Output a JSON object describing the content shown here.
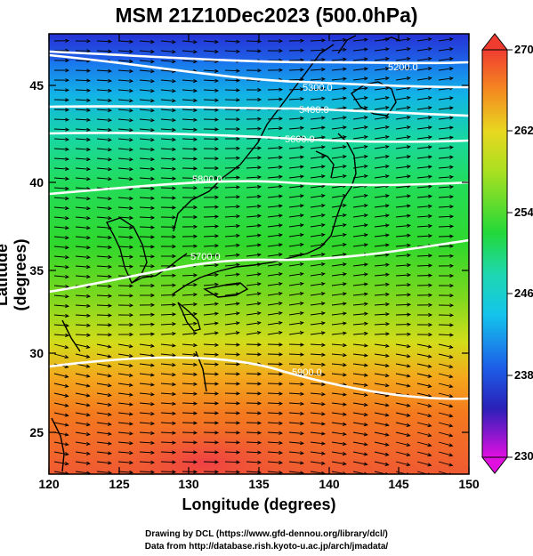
{
  "title": "MSM 21Z10Dec2023 (500.0hPa)",
  "axes": {
    "xlabel": "Longitude (degrees)",
    "ylabel": "Latitude  (degrees)",
    "x_ticks": [
      "120",
      "125",
      "130",
      "135",
      "140",
      "145",
      "150"
    ],
    "y_ticks": [
      "25",
      "30",
      "35",
      "40",
      "45"
    ],
    "xlim": [
      120,
      150
    ],
    "ylim": [
      22.4,
      47.6
    ]
  },
  "colorbar": {
    "ticks": [
      "230",
      "238",
      "246",
      "254",
      "262",
      "270"
    ],
    "range": [
      230,
      270
    ],
    "colormap": "rainbow (magenta-blue-cyan-green-yellow-red)"
  },
  "contours": [
    {
      "label": "5200.0",
      "value": 5200
    },
    {
      "label": "5300.0",
      "value": 5300
    },
    {
      "label": "5400.0",
      "value": 5400
    },
    {
      "label": "5600.0",
      "value": 5600
    },
    {
      "label": "5800.0",
      "value": 5800
    },
    {
      "label": "5700.0",
      "value": 5700
    },
    {
      "label": "5900.0",
      "value": 5900
    }
  ],
  "credits": {
    "line1": "Drawing by DCL (https://www.gfd-dennou.org/library/dcl/)",
    "line2": "Data from http://database.rish.kyoto-u.ac.jp/arch/jmadata/"
  },
  "colors": {
    "contour": "#ffffff",
    "coastline": "#000000",
    "vector": "#000000"
  }
}
